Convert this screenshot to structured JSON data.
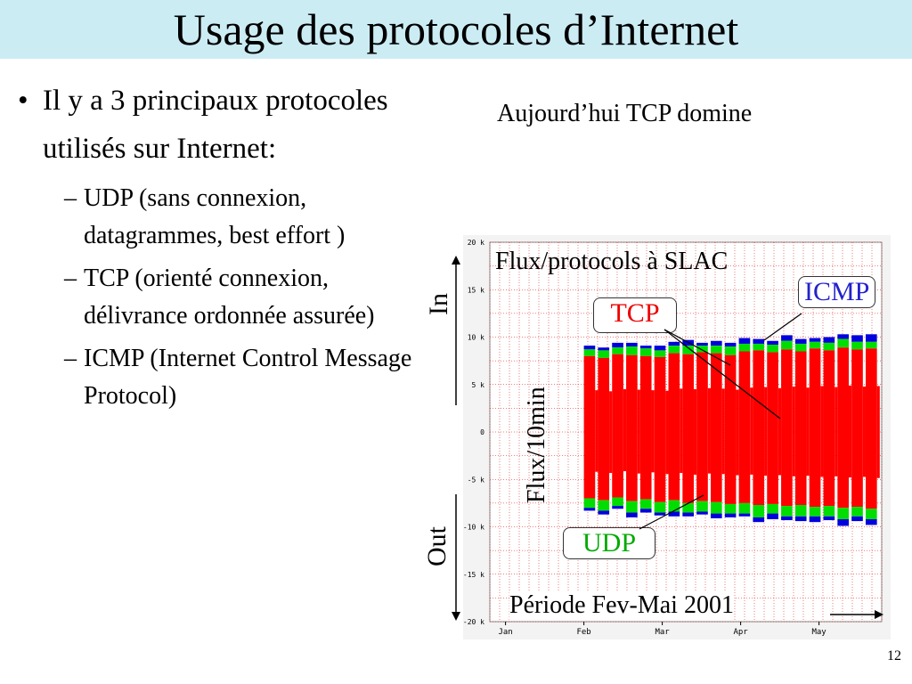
{
  "slide": {
    "title": "Usage des protocoles d’Internet",
    "bullet_main": "Il y a 3 principaux protocoles utilisés sur Internet:",
    "sub_bullets": [
      "UDP (sans connexion, datagrammes, best effort )",
      "TCP (orienté connexion, délivrance ordonnée assurée)",
      "ICMP (Internet Control Message Protocol)"
    ],
    "subtitle": "Aujourd’hui TCP domine",
    "page_number": "12",
    "annotations": {
      "chart_heading": "Flux/protocols à SLAC",
      "icmp": "ICMP",
      "tcp": "TCP",
      "udp": "UDP",
      "ylabel": "Flux/10min",
      "in": "In",
      "out": "Out",
      "period": "Période Fev-Mai 2001"
    }
  },
  "chart_data": {
    "type": "area",
    "title": "Flux/protocols à SLAC",
    "ylabel": "Flux/10min",
    "xlabel": "Période Fev-Mai 2001",
    "yticks": [
      "20 k",
      "15 k",
      "10 k",
      "5 k",
      "0",
      "-5 k",
      "-10 k",
      "-15 k",
      "-20 k"
    ],
    "ylim": [
      -20000,
      20000
    ],
    "xticks": [
      "Jan",
      "Feb",
      "Mar",
      "Apr",
      "May"
    ],
    "grid": true,
    "colors": {
      "tcp": "#ff0000",
      "udp": "#00dd00",
      "icmp": "#0000dd",
      "grid": "#dd0000"
    },
    "series": [
      {
        "name": "TCP",
        "values_in": [
          8000,
          7800,
          8200,
          8100,
          8000,
          7900,
          8300,
          8200,
          8400,
          8300,
          8100,
          8500,
          8600,
          8400,
          8700,
          8500,
          8800,
          8600,
          8900,
          8700,
          8800
        ],
        "values_out": [
          -7000,
          -7200,
          -6900,
          -7300,
          -7100,
          -7400,
          -7200,
          -7500,
          -7300,
          -7400,
          -7600,
          -7500,
          -7700,
          -7600,
          -7800,
          -7700,
          -7900,
          -7800,
          -8000,
          -7900,
          -8100
        ]
      },
      {
        "name": "UDP",
        "values_in": [
          700,
          800,
          700,
          900,
          800,
          700,
          800,
          900,
          700,
          800,
          900,
          800,
          700,
          800,
          900,
          800,
          700,
          800,
          900,
          800,
          700
        ],
        "values_out": [
          -1000,
          -1100,
          -900,
          -1200,
          -1000,
          -1100,
          -1200,
          -1000,
          -1100,
          -1200,
          -1000,
          -1100,
          -1300,
          -1000,
          -1100,
          -1200,
          -1000,
          -1100,
          -1200,
          -1000,
          -1100
        ]
      },
      {
        "name": "ICMP",
        "values_in": [
          400,
          300,
          500,
          400,
          300,
          500,
          400,
          600,
          300,
          500,
          400,
          600,
          500,
          400,
          600,
          500,
          400,
          600,
          500,
          700,
          800
        ],
        "values_out": [
          -300,
          -400,
          -300,
          -500,
          -400,
          -300,
          -500,
          -400,
          -300,
          -500,
          -400,
          -300,
          -500,
          -600,
          -400,
          -500,
          -600,
          -400,
          -700,
          -500,
          -600
        ]
      }
    ]
  }
}
